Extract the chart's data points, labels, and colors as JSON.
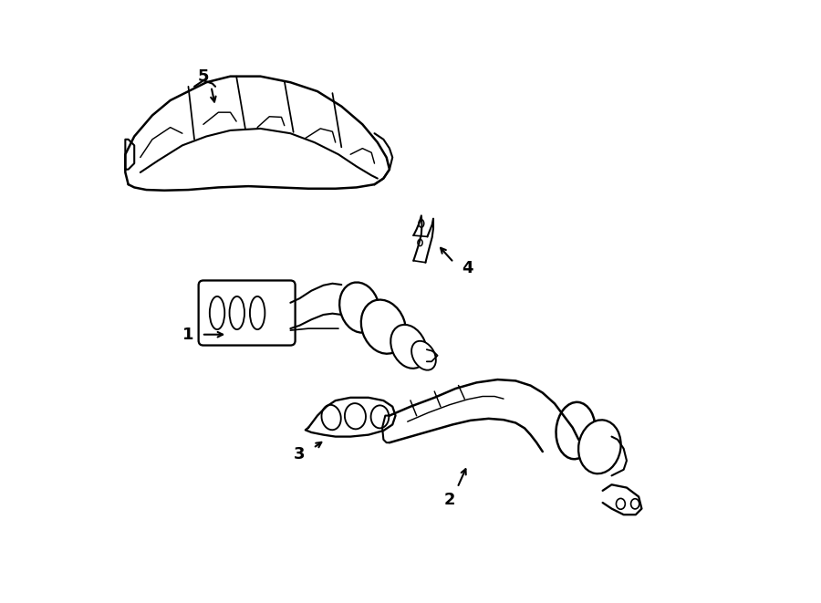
{
  "bg_color": "#ffffff",
  "line_color": "#000000",
  "line_width": 1.5,
  "fig_width": 9.0,
  "fig_height": 6.61
}
